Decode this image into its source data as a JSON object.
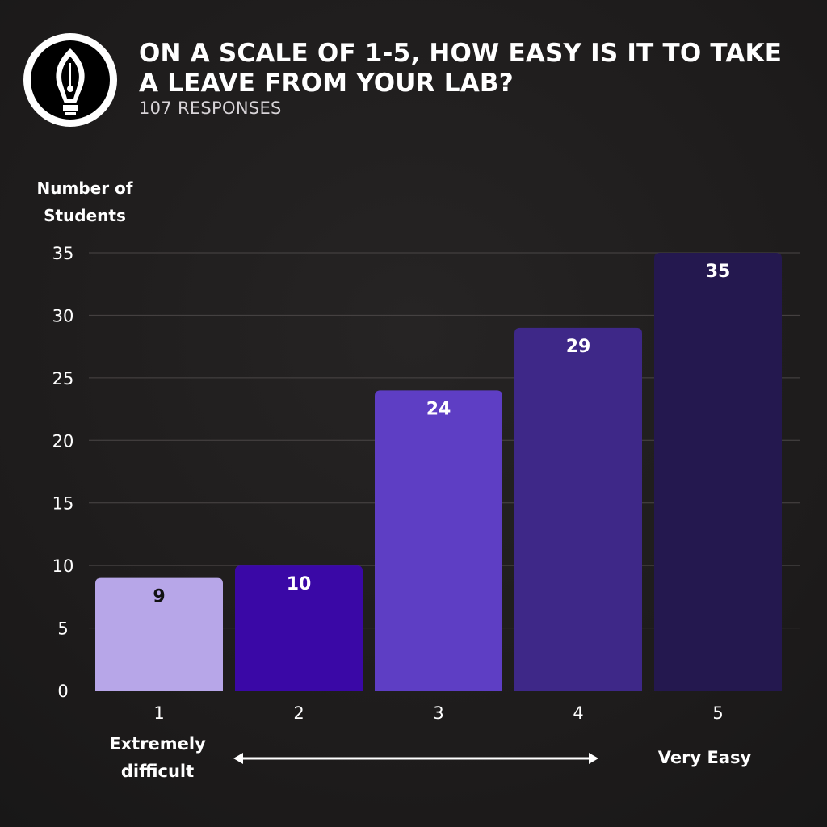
{
  "header": {
    "title": "ON A SCALE OF 1-5, HOW EASY IS IT TO TAKE A LEAVE FROM YOUR LAB?",
    "subtitle": "107 RESPONSES",
    "logo_icon": "fountain-pen-nib-icon"
  },
  "scale_labels": {
    "low": "Extremely difficult",
    "high": "Very Easy",
    "arrow_icon": "double-headed-arrow-icon"
  },
  "colors": {
    "gridline": "#4a4646",
    "axis_text": "#ffffff",
    "bar_label_dark": "#111111",
    "bar_label_light": "#ffffff"
  },
  "chart_data": {
    "type": "bar",
    "title": "ON A SCALE OF 1-5, HOW EASY IS IT TO TAKE A LEAVE FROM YOUR LAB?",
    "ylabel": "Number of Students",
    "xlabel": "",
    "categories": [
      "1",
      "2",
      "3",
      "4",
      "5"
    ],
    "values": [
      9,
      10,
      24,
      29,
      35
    ],
    "bar_colors": [
      "#b7a6e8",
      "#3a08a6",
      "#5e3ec4",
      "#3e2888",
      "#24184f"
    ],
    "ylim": [
      0,
      35
    ],
    "yticks": [
      0,
      5,
      10,
      15,
      20,
      25,
      30,
      35
    ],
    "grid": true,
    "legend": "none"
  }
}
